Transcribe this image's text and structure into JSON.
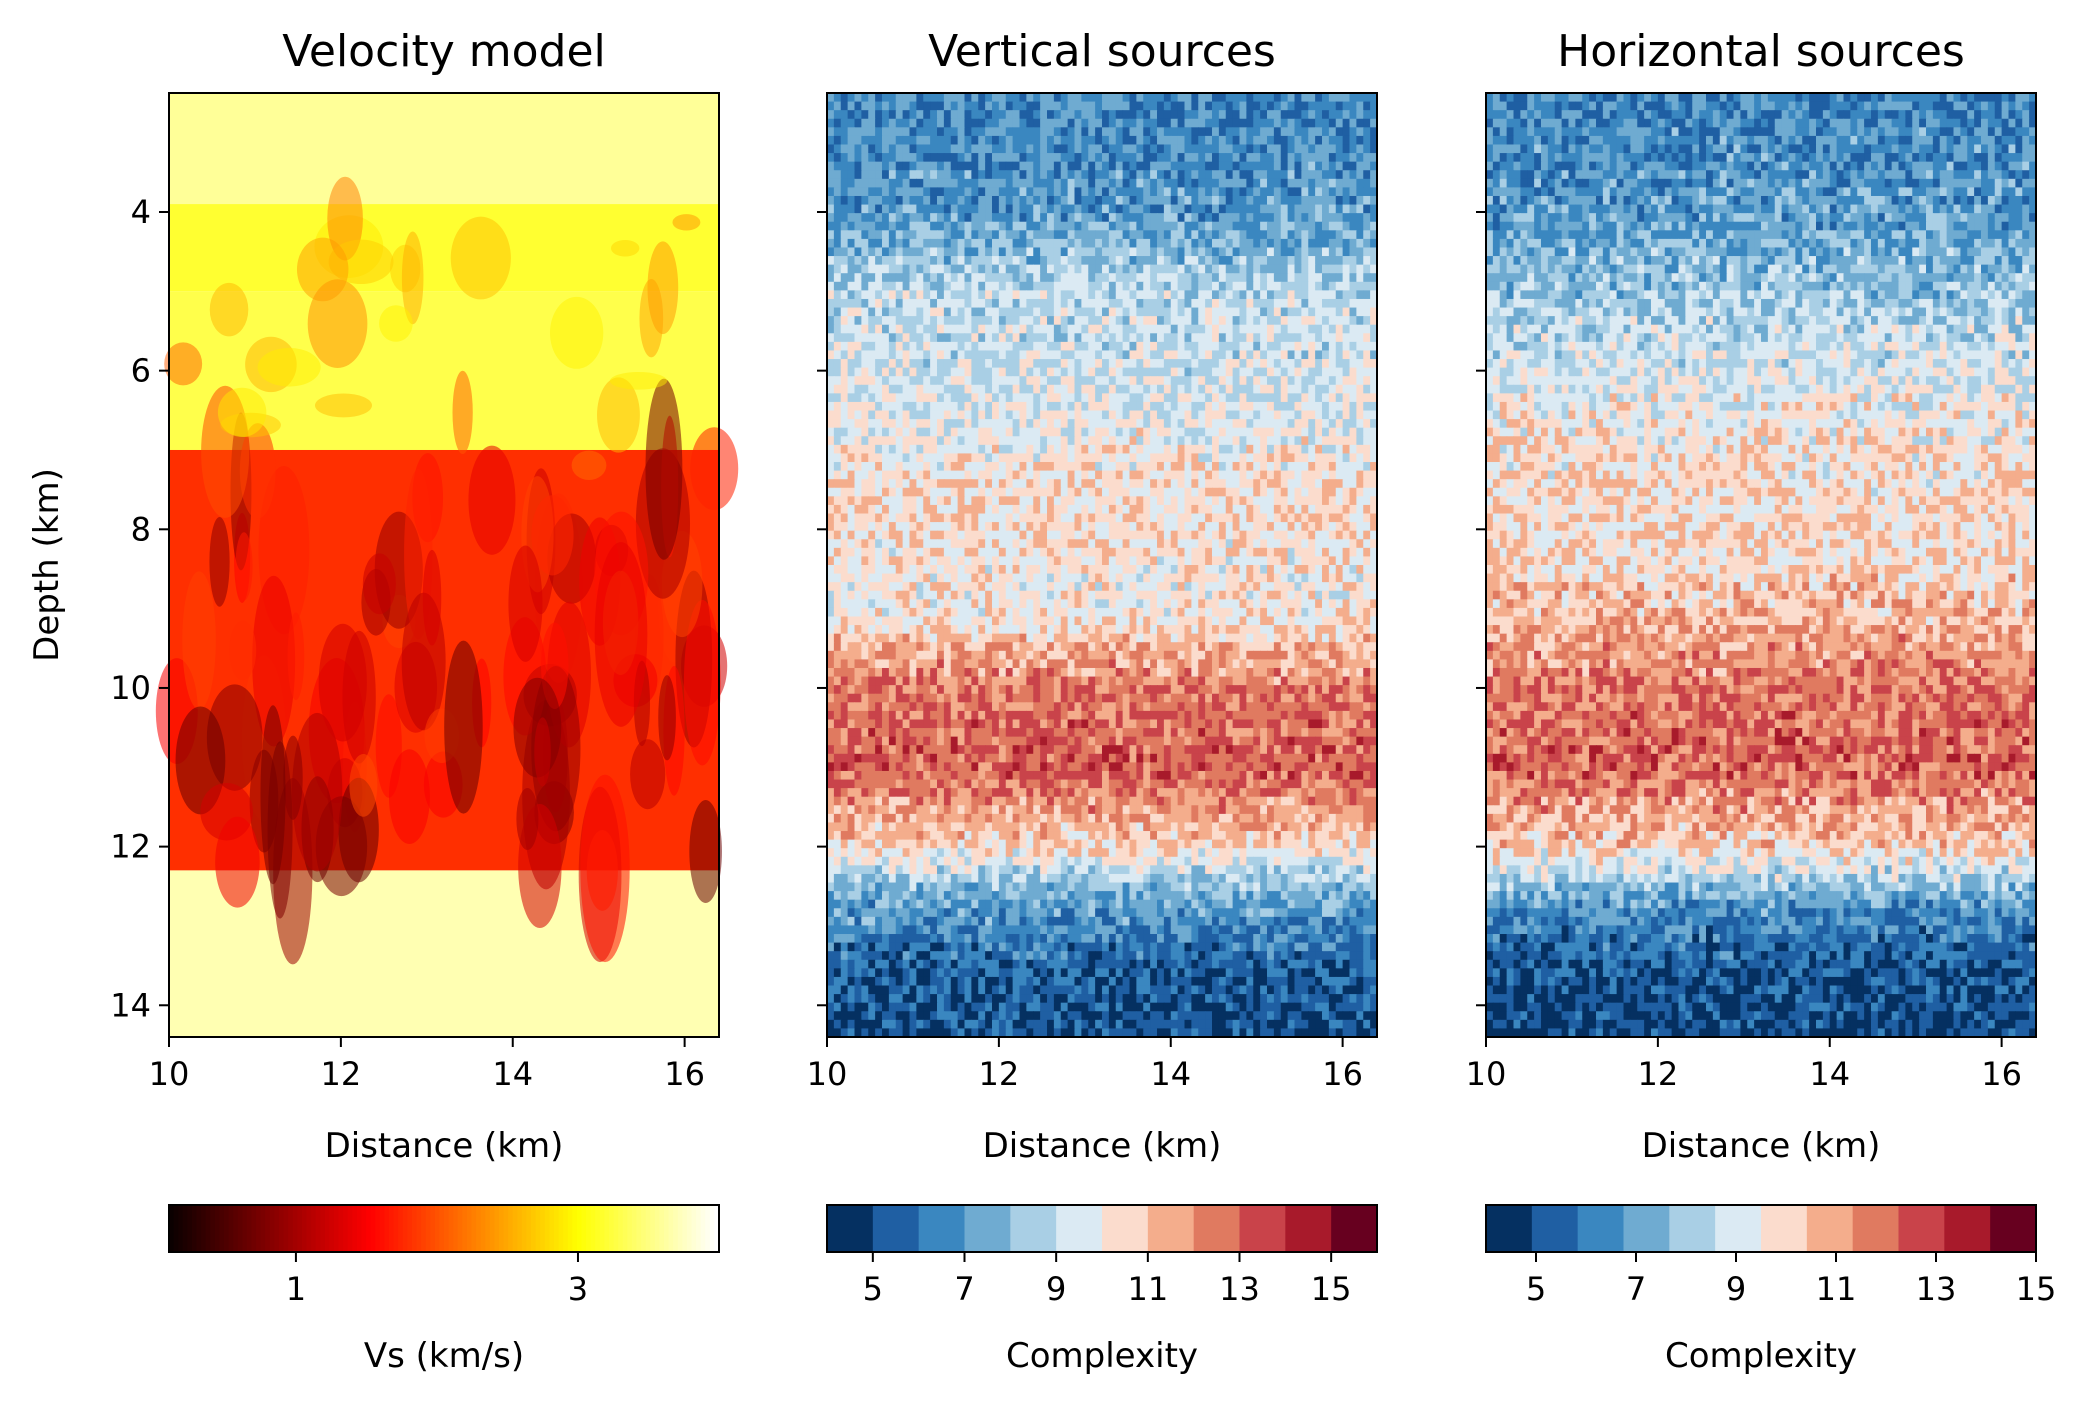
{
  "figure": {
    "panels": [
      {
        "title": "Velocity model",
        "xlabel": "Distance (km)",
        "ylabel": "Depth (km)",
        "colorbar_label": "Vs (km/s)"
      },
      {
        "title": "Vertical sources",
        "xlabel": "Distance (km)",
        "colorbar_label": "Complexity"
      },
      {
        "title": "Horizontal sources",
        "xlabel": "Distance (km)",
        "colorbar_label": "Complexity"
      }
    ]
  },
  "chart_data": [
    {
      "type": "heatmap",
      "title": "Velocity model",
      "xlabel": "Distance (km)",
      "ylabel": "Depth (km)",
      "xlim": [
        10,
        16.4
      ],
      "ylim": [
        14.4,
        2.5
      ],
      "y_inverted": true,
      "xticks": [
        10,
        12,
        14,
        16
      ],
      "yticks": [
        4,
        6,
        8,
        10,
        12,
        14
      ],
      "colormap": "hot",
      "colorbar": {
        "label": "Vs (km/s)",
        "range": [
          0.1,
          4.0
        ],
        "ticks": [
          1,
          3
        ]
      },
      "bands": [
        {
          "depth": [
            2.5,
            3.9
          ],
          "vs": 3.6
        },
        {
          "depth": [
            3.9,
            5.0
          ],
          "vs": 3.2
        },
        {
          "depth": [
            5.0,
            7.0
          ],
          "vs": 3.3
        },
        {
          "depth": [
            7.0,
            12.3
          ],
          "vs": 1.8
        },
        {
          "depth": [
            12.3,
            14.4
          ],
          "vs": 3.7
        }
      ]
    },
    {
      "type": "heatmap",
      "title": "Vertical sources",
      "xlabel": "Distance (km)",
      "xlim": [
        10,
        16.4
      ],
      "ylim": [
        14.4,
        2.5
      ],
      "y_inverted": true,
      "xticks": [
        10,
        12,
        14,
        16
      ],
      "yticks": [
        4,
        6,
        8,
        10,
        12,
        14
      ],
      "colormap": "RdBu_r",
      "colorbar": {
        "label": "Complexity",
        "range": [
          4,
          16
        ],
        "ticks": [
          5,
          7,
          9,
          11,
          13,
          15
        ],
        "levels": 12
      },
      "depth_profile": [
        {
          "depth": 2.5,
          "complexity": 6.5
        },
        {
          "depth": 4.0,
          "complexity": 7.0
        },
        {
          "depth": 5.0,
          "complexity": 8.8
        },
        {
          "depth": 6.5,
          "complexity": 9.5
        },
        {
          "depth": 7.5,
          "complexity": 10.5
        },
        {
          "depth": 9.0,
          "complexity": 10.0
        },
        {
          "depth": 10.0,
          "complexity": 12.5
        },
        {
          "depth": 11.0,
          "complexity": 13.2
        },
        {
          "depth": 12.0,
          "complexity": 10.5
        },
        {
          "depth": 12.6,
          "complexity": 7.5
        },
        {
          "depth": 13.5,
          "complexity": 5.6
        },
        {
          "depth": 14.4,
          "complexity": 5.0
        }
      ]
    },
    {
      "type": "heatmap",
      "title": "Horizontal sources",
      "xlabel": "Distance (km)",
      "xlim": [
        10,
        16.4
      ],
      "ylim": [
        14.4,
        2.5
      ],
      "y_inverted": true,
      "xticks": [
        10,
        12,
        14,
        16
      ],
      "yticks": [
        4,
        6,
        8,
        10,
        12,
        14
      ],
      "colormap": "RdBu_r",
      "colorbar": {
        "label": "Complexity",
        "range": [
          4,
          15
        ],
        "ticks": [
          5,
          7,
          9,
          11,
          13,
          15
        ],
        "levels": 12
      },
      "depth_profile": [
        {
          "depth": 2.5,
          "complexity": 6.2
        },
        {
          "depth": 4.0,
          "complexity": 6.8
        },
        {
          "depth": 5.5,
          "complexity": 8.5
        },
        {
          "depth": 7.0,
          "complexity": 9.8
        },
        {
          "depth": 8.5,
          "complexity": 10.0
        },
        {
          "depth": 10.0,
          "complexity": 11.8
        },
        {
          "depth": 11.0,
          "complexity": 12.2
        },
        {
          "depth": 12.0,
          "complexity": 10.2
        },
        {
          "depth": 12.7,
          "complexity": 6.8
        },
        {
          "depth": 13.5,
          "complexity": 5.3
        },
        {
          "depth": 14.4,
          "complexity": 4.6
        }
      ]
    }
  ]
}
